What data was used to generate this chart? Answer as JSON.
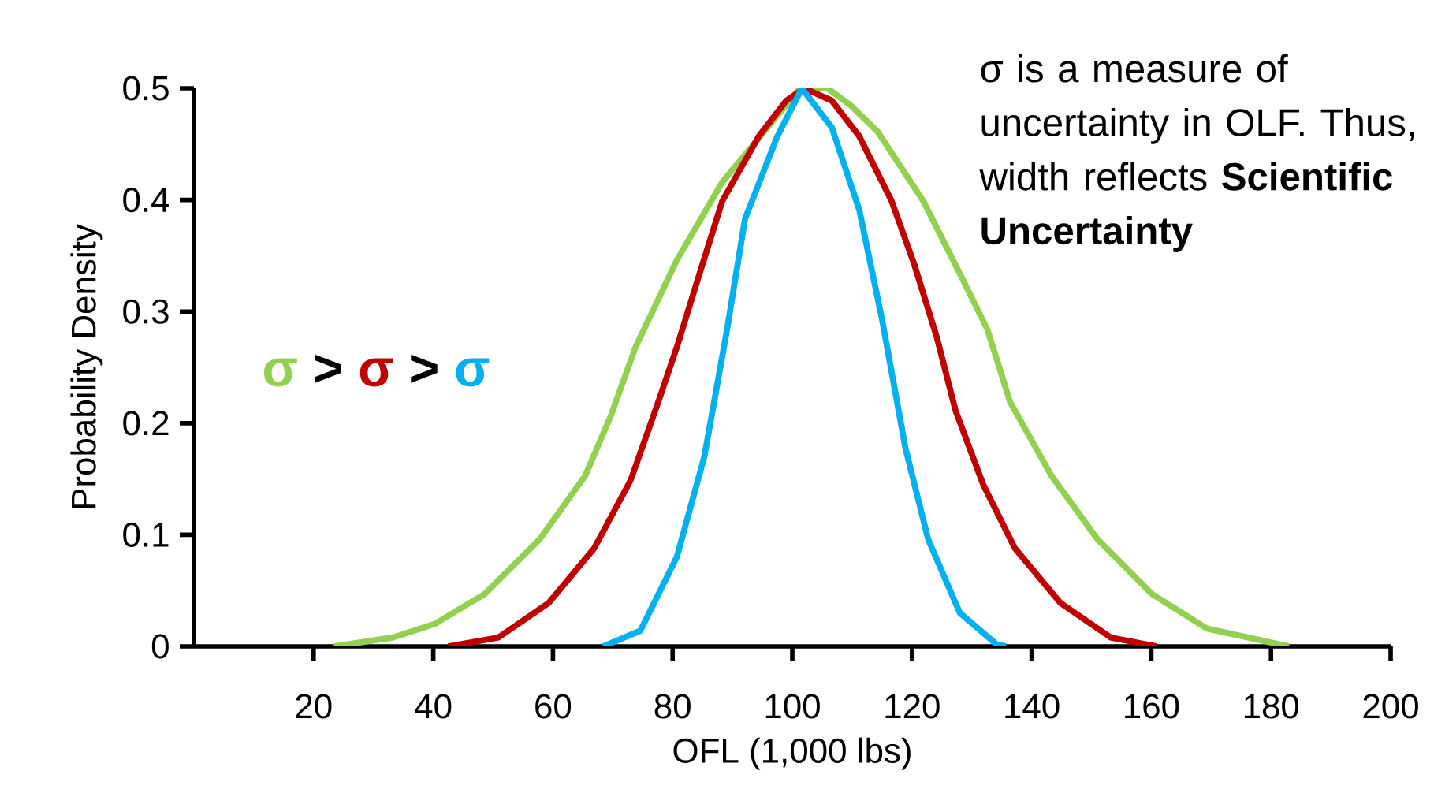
{
  "chart_data": {
    "type": "line",
    "xlabel": "OFL (1,000 lbs)",
    "ylabel": "Probability Density",
    "xlim": [
      0,
      200
    ],
    "xticks": [
      20,
      40,
      60,
      80,
      100,
      120,
      140,
      160,
      180,
      200
    ],
    "ylim": [
      0,
      0.5
    ],
    "yticks": [
      0,
      0.1,
      0.2,
      0.3,
      0.4,
      0.5
    ],
    "grid": false,
    "marker": "none",
    "line_style": "solid",
    "annotations": [
      "σ is a measure of uncertainty in OLF. Thus, width reflects **Scientific Uncertainty**",
      ">",
      ">"
    ],
    "series": [
      {
        "name": "σ",
        "color": "#92d050",
        "x": [
          23.4,
          33.3,
          40.2,
          48.6,
          57.8,
          65.4,
          69.7,
          73.8,
          80.7,
          88.3,
          95.9,
          101.3,
          105.9,
          109.7,
          114.3,
          121.9,
          128,
          132.6,
          136.4,
          143.3,
          151,
          160.1,
          169.3,
          183
        ],
        "values": [
          0,
          0.008,
          0.02,
          0.047,
          0.096,
          0.153,
          0.207,
          0.268,
          0.346,
          0.416,
          0.465,
          0.5,
          0.5,
          0.485,
          0.461,
          0.399,
          0.334,
          0.284,
          0.219,
          0.153,
          0.096,
          0.047,
          0.016,
          0
        ]
      },
      {
        "name": "σ",
        "color": "#c00000",
        "x": [
          42.5,
          50.9,
          59.3,
          66.9,
          73,
          77.6,
          80.7,
          84.5,
          88.3,
          94.4,
          99,
          102,
          106.6,
          111.2,
          116.6,
          120.4,
          124.2,
          127.3,
          131.9,
          137.2,
          144.8,
          153.2,
          160.9
        ],
        "values": [
          0,
          0.008,
          0.039,
          0.088,
          0.149,
          0.219,
          0.268,
          0.334,
          0.399,
          0.457,
          0.489,
          0.5,
          0.489,
          0.457,
          0.399,
          0.342,
          0.276,
          0.211,
          0.145,
          0.088,
          0.039,
          0.008,
          0
        ]
      },
      {
        "name": "σ",
        "color": "#00b0f0",
        "x": [
          68.4,
          74.6,
          80.7,
          85.3,
          89.1,
          92.1,
          97.5,
          101.6,
          106.6,
          111.2,
          115,
          118.9,
          122.7,
          128,
          134.1,
          135.7
        ],
        "values": [
          0,
          0.014,
          0.08,
          0.17,
          0.284,
          0.383,
          0.457,
          0.5,
          0.465,
          0.391,
          0.293,
          0.178,
          0.096,
          0.03,
          0.002,
          0
        ]
      }
    ]
  }
}
